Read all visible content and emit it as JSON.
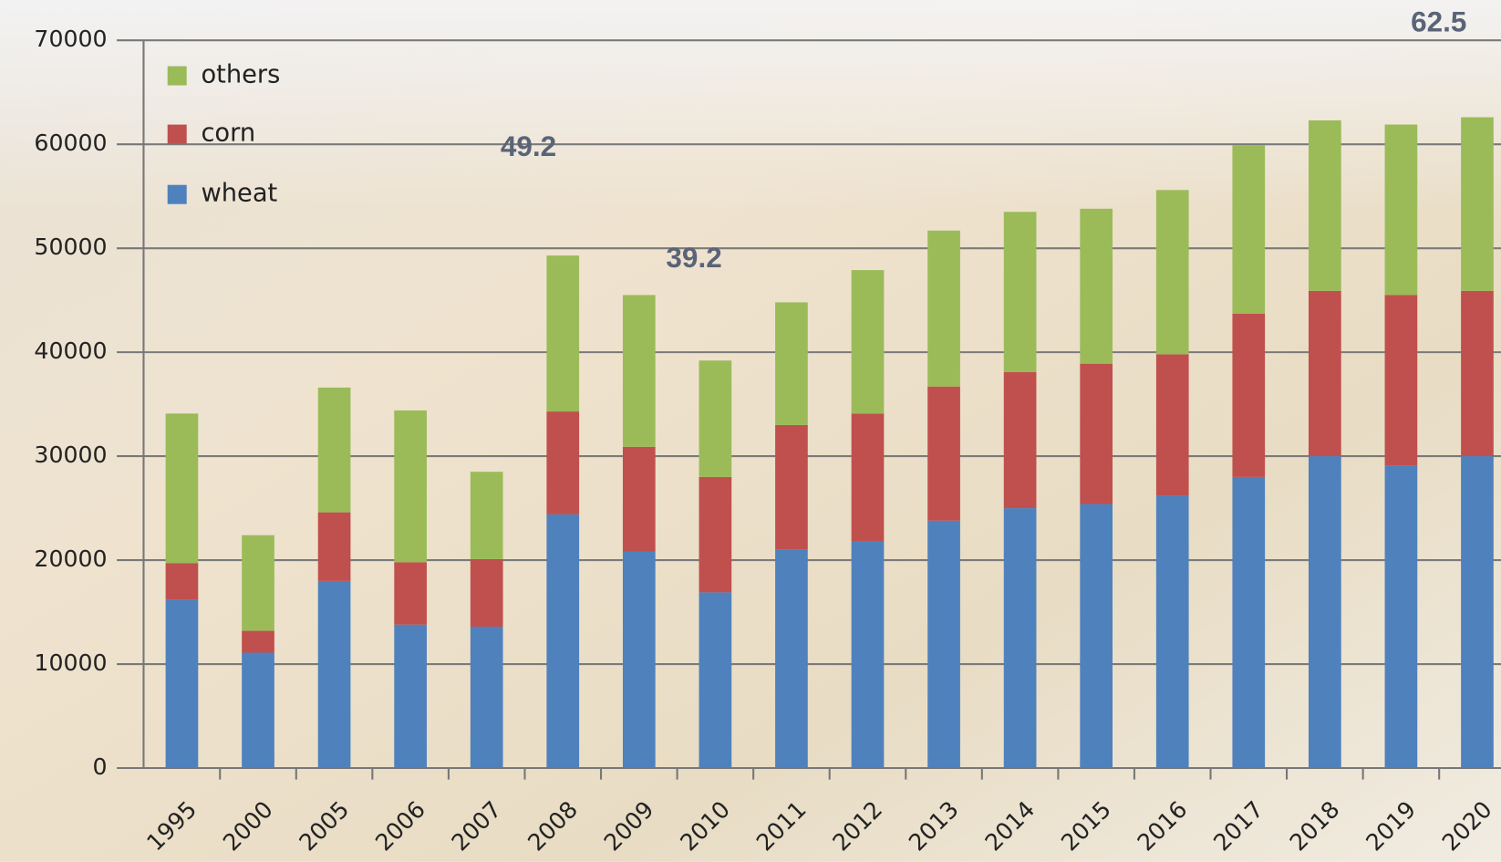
{
  "chart_data": {
    "type": "bar",
    "stacked": true,
    "categories": [
      "1995",
      "2000",
      "2005",
      "2006",
      "2007",
      "2008",
      "2009",
      "2010",
      "2011",
      "2012",
      "2013",
      "2014",
      "2015",
      "2016",
      "2017",
      "2018",
      "2019",
      "2020"
    ],
    "series": [
      {
        "name": "wheat",
        "color": "#4f81bd",
        "values": [
          16200,
          11100,
          18000,
          13800,
          13600,
          24400,
          20800,
          16900,
          21000,
          21800,
          23800,
          25000,
          25400,
          26200,
          28000,
          30000,
          29100,
          30000
        ]
      },
      {
        "name": "corn",
        "color": "#c0504d",
        "values": [
          3500,
          2100,
          6600,
          6000,
          6500,
          9900,
          10100,
          11100,
          12000,
          12300,
          12900,
          13100,
          13500,
          13600,
          15700,
          15900,
          16400,
          15900
        ]
      },
      {
        "name": "others",
        "color": "#9bbb59",
        "values": [
          14400,
          9200,
          12000,
          14600,
          8400,
          15000,
          14600,
          11200,
          11800,
          13800,
          15000,
          15400,
          14900,
          15800,
          16200,
          16400,
          16400,
          16700
        ]
      }
    ],
    "ylim": [
      0,
      70000
    ],
    "yticks": [
      0,
      10000,
      20000,
      30000,
      40000,
      50000,
      60000,
      70000
    ],
    "grid": true,
    "annotations": [
      "49.2",
      "39.2",
      "62.5"
    ]
  }
}
